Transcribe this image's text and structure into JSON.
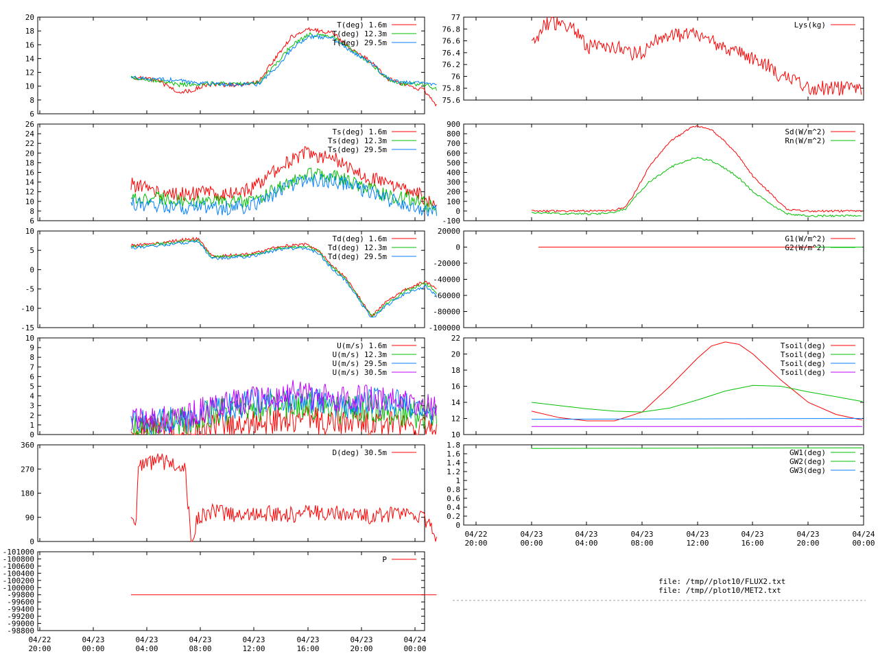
{
  "time_axis": {
    "tick_labels_top": [
      "04/22",
      "04/23",
      "04/23",
      "04/23",
      "04/23",
      "04/23",
      "04/23",
      "04/24"
    ],
    "tick_labels_bottom": [
      "20:00",
      "00:00",
      "04:00",
      "08:00",
      "12:00",
      "16:00",
      "20:00",
      "00:00"
    ]
  },
  "colors": {
    "red": "#ff0000",
    "green": "#00c000",
    "blue": "#0080ff",
    "purple": "#c000ff",
    "grid": "#a0a0a0"
  },
  "files": [
    "file: /tmp//plot10/FLUX2.txt",
    "file: /tmp//plot10/MET2.txt"
  ],
  "chart_data": [
    {
      "id": "T",
      "type": "line",
      "yticks": [
        "20",
        "18",
        "16",
        "14",
        "12",
        "10",
        "8",
        "6"
      ],
      "ylim": [
        6,
        20
      ],
      "legend": [
        "T(deg)  1.6m",
        "T(deg) 12.3m",
        "T(deg) 29.5m"
      ],
      "series": [
        {
          "name": "T(deg)  1.6m",
          "color": "red",
          "x": [
            0,
            2,
            3.5,
            4.5,
            5.5,
            8,
            9.5,
            11,
            12,
            13.3,
            15,
            16.5,
            18,
            19,
            20,
            21.8,
            22.8
          ],
          "y": [
            11.3,
            10.8,
            9.2,
            9.3,
            10.2,
            10.2,
            10.6,
            14.7,
            17.2,
            18.2,
            17.8,
            15.2,
            13.5,
            11.2,
            10.4,
            9.5,
            7.2
          ]
        },
        {
          "name": "T(deg) 12.3m",
          "color": "green",
          "x": [
            0,
            2,
            3.5,
            4.5,
            5.5,
            8,
            9.5,
            11,
            12,
            13.3,
            15,
            16.5,
            18,
            19,
            20,
            21.8,
            22.8
          ],
          "y": [
            11.3,
            10.8,
            10.2,
            10.3,
            10.4,
            10.3,
            10.5,
            13.5,
            16.0,
            17.5,
            17.2,
            15.2,
            13.2,
            11.3,
            10.4,
            10.3,
            9.5
          ]
        },
        {
          "name": "T(deg) 29.5m",
          "color": "blue",
          "x": [
            0,
            2,
            3.5,
            4.5,
            5.5,
            8,
            9.5,
            11,
            12,
            13.3,
            15,
            16.5,
            18,
            19,
            20,
            21.8,
            22.8
          ],
          "y": [
            11.2,
            11.0,
            10.9,
            10.6,
            10.4,
            10.2,
            10.3,
            13.0,
            15.5,
            17.2,
            17.0,
            15.0,
            13.2,
            11.3,
            10.5,
            10.6,
            10.2
          ]
        }
      ]
    },
    {
      "id": "Ts",
      "type": "line",
      "yticks": [
        "26",
        "24",
        "22",
        "20",
        "18",
        "16",
        "14",
        "12",
        "10",
        "8",
        "6"
      ],
      "ylim": [
        6,
        26
      ],
      "legend": [
        "Ts(deg)  1.6m",
        "Ts(deg) 12.3m",
        "Ts(deg) 29.5m"
      ],
      "series": [
        {
          "name": "Ts(deg)  1.6m",
          "color": "red",
          "x": [
            0,
            1,
            2,
            3,
            5,
            7.5,
            9,
            11,
            13,
            15,
            17,
            19,
            21,
            22.8
          ],
          "y": [
            13.5,
            13.0,
            11.8,
            11.5,
            11.7,
            11.6,
            12.5,
            17.0,
            20.0,
            19.0,
            16.0,
            13.5,
            12.5,
            9.0
          ]
        },
        {
          "name": "Ts(deg) 12.3m",
          "color": "green",
          "x": [
            0,
            1,
            2,
            3,
            5,
            7.5,
            9,
            11,
            13,
            15,
            17,
            19,
            21,
            22.8
          ],
          "y": [
            10.5,
            10.5,
            10.5,
            10.2,
            10.0,
            9.8,
            10.0,
            13.0,
            15.5,
            15.2,
            13.5,
            11.2,
            10.5,
            8.5
          ]
        },
        {
          "name": "Ts(deg) 29.5m",
          "color": "blue",
          "x": [
            0,
            1,
            2,
            3,
            5,
            7.5,
            9,
            11,
            13,
            15,
            17,
            19,
            21,
            22.8
          ],
          "y": [
            9.5,
            9.3,
            9.0,
            8.9,
            8.7,
            8.6,
            9.0,
            12.0,
            14.5,
            14.3,
            12.8,
            10.5,
            9.2,
            7.8
          ]
        }
      ]
    },
    {
      "id": "Td",
      "type": "line",
      "yticks": [
        "10",
        "5",
        "0",
        "-5",
        "-10",
        "-15"
      ],
      "ylim": [
        -15,
        10
      ],
      "legend": [
        "Td(deg)  1.6m",
        "Td(deg) 12.3m",
        "Td(deg) 29.5m"
      ],
      "series": [
        {
          "name": "Td(deg)  1.6m",
          "color": "red",
          "x": [
            0,
            2,
            4,
            5,
            6,
            9,
            11,
            13,
            14,
            15,
            16,
            17.3,
            18,
            19,
            20.5,
            22,
            22.8
          ],
          "y": [
            6.2,
            6.8,
            7.8,
            8.0,
            3.5,
            4.0,
            6.0,
            6.5,
            5.0,
            1.0,
            -2.0,
            -8.5,
            -12.0,
            -8.5,
            -5.0,
            -3.0,
            -5.0
          ]
        },
        {
          "name": "Td(deg) 12.3m",
          "color": "green",
          "x": [
            0,
            2,
            4,
            5,
            6,
            9,
            11,
            13,
            14,
            15,
            16,
            17.3,
            18,
            19,
            20.5,
            22,
            22.8
          ],
          "y": [
            5.9,
            6.5,
            7.4,
            7.6,
            3.2,
            3.7,
            5.6,
            6.0,
            4.7,
            0.6,
            -2.4,
            -8.9,
            -12.3,
            -9.0,
            -5.5,
            -3.5,
            -6.0
          ]
        },
        {
          "name": "Td(deg) 29.5m",
          "color": "blue",
          "x": [
            0,
            2,
            4,
            5,
            6,
            9,
            11,
            13,
            14,
            15,
            16,
            17.3,
            18,
            19,
            20.5,
            22,
            22.8
          ],
          "y": [
            5.6,
            6.2,
            7.0,
            7.3,
            2.9,
            3.4,
            5.2,
            5.6,
            4.3,
            0.2,
            -2.8,
            -9.3,
            -12.7,
            -9.5,
            -6.0,
            -4.2,
            -7.0
          ]
        }
      ]
    },
    {
      "id": "U",
      "type": "line",
      "yticks": [
        "10",
        "9",
        "8",
        "7",
        "6",
        "5",
        "4",
        "3",
        "2",
        "1",
        "0"
      ],
      "ylim": [
        0,
        10
      ],
      "legend": [
        "U(m/s)  1.6m",
        "U(m/s) 12.3m",
        "U(m/s) 29.5m",
        "U(m/s) 30.5m"
      ],
      "series": [
        {
          "name": "U(m/s)  1.6m",
          "color": "red",
          "x": [
            0,
            2,
            4,
            6,
            8,
            10,
            12,
            14,
            16,
            18,
            19.5,
            21,
            22,
            22.8
          ],
          "y": [
            0.3,
            0.4,
            0.3,
            0.6,
            1.0,
            1.5,
            1.8,
            1.5,
            1.2,
            1.3,
            0.9,
            0.8,
            0.5,
            0.2
          ]
        },
        {
          "name": "U(m/s) 12.3m",
          "color": "green",
          "x": [
            0,
            2,
            4,
            6,
            8,
            10,
            12,
            14,
            16,
            18,
            19.5,
            21,
            22,
            22.8
          ],
          "y": [
            1.0,
            1.2,
            1.4,
            2.2,
            2.5,
            2.8,
            3.2,
            3.0,
            2.5,
            2.8,
            2.4,
            2.2,
            2.0,
            1.8
          ]
        },
        {
          "name": "U(m/s) 29.5m",
          "color": "blue",
          "x": [
            0,
            2,
            4,
            6,
            8,
            10,
            12,
            14,
            16,
            18,
            19.5,
            21,
            22,
            22.8
          ],
          "y": [
            1.2,
            1.4,
            1.6,
            2.6,
            3.0,
            3.4,
            3.8,
            3.5,
            3.0,
            3.4,
            3.2,
            3.0,
            2.6,
            2.2
          ]
        },
        {
          "name": "U(m/s) 30.5m",
          "color": "purple",
          "x": [
            0,
            2,
            4,
            6,
            8,
            10,
            12,
            14,
            16,
            18,
            19.5,
            21,
            22,
            22.8
          ],
          "y": [
            1.3,
            1.5,
            1.7,
            2.8,
            3.3,
            3.7,
            4.2,
            3.9,
            3.4,
            3.8,
            3.6,
            3.4,
            3.0,
            2.4
          ]
        }
      ]
    },
    {
      "id": "D",
      "type": "line",
      "yticks": [
        "360",
        "270",
        "180",
        "90",
        "0"
      ],
      "ylim": [
        0,
        360
      ],
      "legend": [
        "D(deg)  30.5m"
      ],
      "series": [
        {
          "name": "D(deg)  30.5m",
          "color": "red",
          "x": [
            0,
            0.4,
            0.5,
            1,
            2,
            3,
            4,
            4.5,
            5,
            6,
            8,
            10,
            12,
            14,
            16,
            18,
            20,
            21.5,
            22.3,
            22.8
          ],
          "y": [
            90,
            85,
            270,
            280,
            300,
            290,
            285,
            0,
            90,
            110,
            100,
            105,
            100,
            110,
            100,
            95,
            100,
            100,
            60,
            0
          ]
        }
      ]
    },
    {
      "id": "P",
      "type": "line",
      "yticks": [
        "-101000",
        "-100800",
        "-100600",
        "-100400",
        "-100200",
        "-100000",
        "-99800",
        "-99600",
        "-99400",
        "-99200",
        "-99000",
        "-98800"
      ],
      "ylim": [
        -101000,
        -98800
      ],
      "legend": [
        "P"
      ],
      "series": [
        {
          "name": "P",
          "color": "red",
          "x": [
            0,
            22.8
          ],
          "y": [
            -100000,
            -100000
          ]
        }
      ]
    },
    {
      "id": "Lys",
      "type": "line",
      "yticks": [
        "77",
        "76.8",
        "76.6",
        "76.4",
        "76.2",
        "76",
        "75.8",
        "75.6"
      ],
      "ylim": [
        75.6,
        77
      ],
      "legend": [
        "Lys(kg)"
      ],
      "series": [
        {
          "name": "Lys(kg)",
          "color": "red",
          "x": [
            0,
            0.3,
            1,
            2,
            3,
            4,
            5,
            6,
            7,
            8,
            9,
            10,
            11,
            12,
            13,
            14,
            15,
            16,
            17,
            18,
            19,
            20,
            21,
            22,
            23.9
          ],
          "y": [
            76.5,
            76.6,
            76.9,
            76.9,
            76.8,
            76.5,
            76.5,
            76.5,
            76.4,
            76.4,
            76.6,
            76.7,
            76.7,
            76.7,
            76.6,
            76.5,
            76.4,
            76.3,
            76.2,
            76.0,
            75.9,
            75.8,
            75.8,
            75.8,
            75.8
          ]
        }
      ]
    },
    {
      "id": "Rad",
      "type": "line",
      "yticks": [
        "900",
        "800",
        "700",
        "600",
        "500",
        "400",
        "300",
        "200",
        "100",
        "0",
        "-100"
      ],
      "ylim": [
        -100,
        900
      ],
      "legend": [
        "Sd(W/m^2)",
        "Rn(W/m^2)"
      ],
      "series": [
        {
          "name": "Sd(W/m^2)",
          "color": "red",
          "x": [
            0,
            2,
            4,
            5,
            6,
            6.8,
            7.5,
            8.5,
            10,
            11.5,
            12,
            13,
            14,
            15,
            16,
            17.5,
            18.5,
            20,
            23.9
          ],
          "y": [
            0,
            0,
            0,
            0,
            10,
            40,
            200,
            460,
            720,
            860,
            880,
            840,
            720,
            560,
            360,
            150,
            10,
            0,
            0
          ]
        },
        {
          "name": "Rn(W/m^2)",
          "color": "green",
          "x": [
            0,
            2,
            4,
            5,
            6,
            6.8,
            7.5,
            8.5,
            10,
            11.5,
            12,
            13,
            14,
            15,
            16,
            17.5,
            18.5,
            20,
            22,
            23.9
          ],
          "y": [
            -20,
            -25,
            -30,
            -25,
            -10,
            20,
            150,
            300,
            450,
            540,
            550,
            520,
            440,
            340,
            200,
            50,
            -30,
            -50,
            -50,
            -45
          ]
        }
      ]
    },
    {
      "id": "G",
      "type": "line",
      "yticks": [
        "20000",
        "0",
        "-20000",
        "-40000",
        "-60000",
        "-80000",
        "-100000"
      ],
      "ylim": [
        -100000,
        20000
      ],
      "legend": [
        "G1(W/m^2)",
        "G2(W/m^2)"
      ],
      "series": [
        {
          "name": "G1(W/m^2)",
          "color": "red",
          "x": [
            0.5,
            23.9
          ],
          "y": [
            0,
            0
          ]
        },
        {
          "name": "G2(W/m^2)",
          "color": "green",
          "x": [
            20.5,
            23.9
          ],
          "y": [
            0,
            0
          ]
        }
      ]
    },
    {
      "id": "Tsoil",
      "type": "line",
      "yticks": [
        "22",
        "20",
        "18",
        "16",
        "14",
        "12",
        "10"
      ],
      "ylim": [
        10,
        22
      ],
      "legend": [
        "Tsoil(deg)",
        "Tsoil(deg)",
        "Tsoil(deg)",
        "Tsoil(deg)"
      ],
      "series": [
        {
          "name": "Tsoil(deg)",
          "color": "red",
          "x": [
            0,
            2,
            4,
            6,
            8,
            10,
            12,
            13,
            14,
            15,
            16,
            18,
            20,
            22,
            23.9
          ],
          "y": [
            12.9,
            12.1,
            11.7,
            11.7,
            12.8,
            16.0,
            19.5,
            21.0,
            21.5,
            21.2,
            20.0,
            16.8,
            14.0,
            12.5,
            11.8
          ]
        },
        {
          "name": "Tsoil(deg)",
          "color": "green",
          "x": [
            0,
            2,
            4,
            6,
            8,
            10,
            12,
            14,
            16,
            18,
            20,
            22,
            23.9
          ],
          "y": [
            14.0,
            13.6,
            13.2,
            12.9,
            12.8,
            13.3,
            14.3,
            15.4,
            16.1,
            16.0,
            15.3,
            14.7,
            14.1
          ]
        },
        {
          "name": "Tsoil(deg)",
          "color": "blue",
          "x": [
            0,
            23.9
          ],
          "y": [
            11.9,
            12.0
          ]
        },
        {
          "name": "Tsoil(deg)",
          "color": "purple",
          "x": [
            0,
            23.9
          ],
          "y": [
            11.0,
            11.0
          ]
        }
      ]
    },
    {
      "id": "GW",
      "type": "line",
      "yticks": [
        "1.8",
        "1.6",
        "1.4",
        "1.2",
        "1",
        "0.8",
        "0.6",
        "0.4",
        "0.2",
        "0"
      ],
      "ylim": [
        0,
        1.8
      ],
      "legend": [
        "GW1(deg)",
        "GW2(deg)",
        "GW3(deg)"
      ],
      "series": [
        {
          "name": "GW1(deg)",
          "color": "green",
          "x": [
            0,
            23.9
          ],
          "y": [
            1.72,
            1.73
          ]
        }
      ]
    }
  ]
}
